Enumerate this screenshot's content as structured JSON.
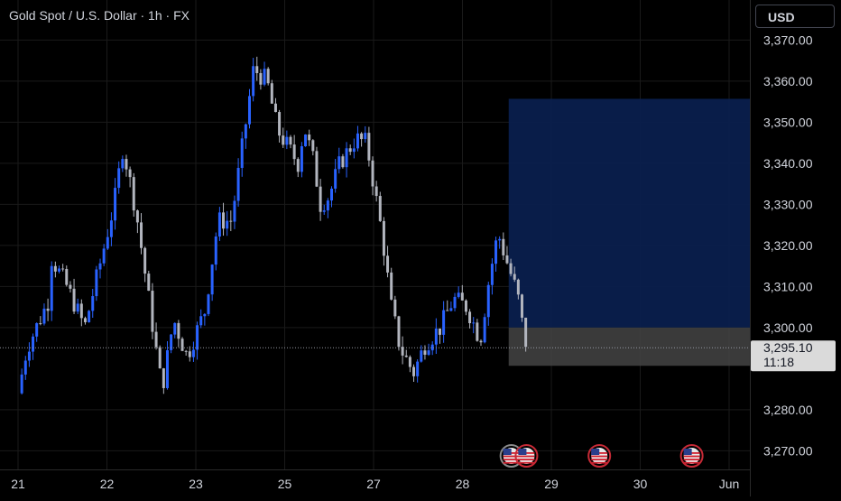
{
  "header": {
    "title": "Gold Spot / U.S. Dollar · 1h · FX",
    "currency_label": "USD"
  },
  "colors": {
    "up": "#2962ff",
    "down": "#b2b5be",
    "profit_zone": "#0a1f4d",
    "loss_zone": "#444444",
    "price_label_bg": "#dadada"
  },
  "chart_data": {
    "type": "candlestick",
    "symbol": "Gold Spot / U.S. Dollar",
    "interval": "1h",
    "exchange": "FX",
    "y_axis": {
      "ylim": [
        3266,
        3374
      ],
      "ticks": [
        "3,370.00",
        "3,360.00",
        "3,350.00",
        "3,340.00",
        "3,330.00",
        "3,320.00",
        "3,310.00",
        "3,300.00",
        "3,280.00",
        "3,270.00"
      ],
      "tick_values": [
        3370,
        3360,
        3350,
        3340,
        3330,
        3320,
        3310,
        3300,
        3280,
        3270
      ]
    },
    "x_axis": {
      "ticks": [
        "21",
        "22",
        "23",
        "25",
        "27",
        "28",
        "29",
        "30",
        "Jun"
      ],
      "tick_positions": [
        0,
        1,
        2,
        3,
        4,
        5,
        6,
        7,
        8
      ]
    },
    "current_price": {
      "value": 3295.1,
      "label": "3,295.10",
      "countdown": "11:18"
    },
    "position": {
      "start_day": 5.52,
      "end_day": 8.28,
      "entry": 3300.0,
      "target": 3355.7,
      "stop": 3290.7
    },
    "anchors": [
      [
        0.0,
        3284
      ],
      [
        0.1,
        3295
      ],
      [
        0.35,
        3307
      ],
      [
        0.35,
        3318
      ],
      [
        0.55,
        3310
      ],
      [
        0.75,
        3300
      ],
      [
        0.95,
        3318
      ],
      [
        1.08,
        3330
      ],
      [
        1.18,
        3344
      ],
      [
        1.33,
        3328
      ],
      [
        1.45,
        3310
      ],
      [
        1.55,
        3295
      ],
      [
        1.62,
        3285
      ],
      [
        1.75,
        3302
      ],
      [
        1.9,
        3293
      ],
      [
        2.1,
        3304
      ],
      [
        2.25,
        3326
      ],
      [
        2.4,
        3326
      ],
      [
        2.55,
        3348
      ],
      [
        2.65,
        3363
      ],
      [
        2.8,
        3360
      ],
      [
        2.92,
        3348
      ],
      [
        3.15,
        3340
      ],
      [
        3.22,
        3349
      ],
      [
        3.33,
        3340
      ],
      [
        3.4,
        3330
      ],
      [
        3.5,
        3332
      ],
      [
        3.62,
        3340
      ],
      [
        3.8,
        3346
      ],
      [
        3.92,
        3345
      ],
      [
        4.0,
        3335
      ],
      [
        4.1,
        3322
      ],
      [
        4.2,
        3305
      ],
      [
        4.3,
        3295
      ],
      [
        4.45,
        3289
      ],
      [
        4.58,
        3296
      ],
      [
        4.75,
        3300
      ],
      [
        4.9,
        3307
      ],
      [
        5.05,
        3305
      ],
      [
        5.2,
        3297
      ],
      [
        5.3,
        3312
      ],
      [
        5.4,
        3323
      ],
      [
        5.5,
        3316
      ],
      [
        5.62,
        3308
      ],
      [
        5.7,
        3297
      ],
      [
        5.74,
        3295
      ]
    ],
    "events": [
      {
        "day": 5.55,
        "type": "us-flag",
        "ring": "gray"
      },
      {
        "day": 5.72,
        "type": "us-flag",
        "ring": "red"
      },
      {
        "day": 6.54,
        "type": "us-flag",
        "ring": "red"
      },
      {
        "day": 7.58,
        "type": "us-flag",
        "ring": "red"
      }
    ]
  }
}
